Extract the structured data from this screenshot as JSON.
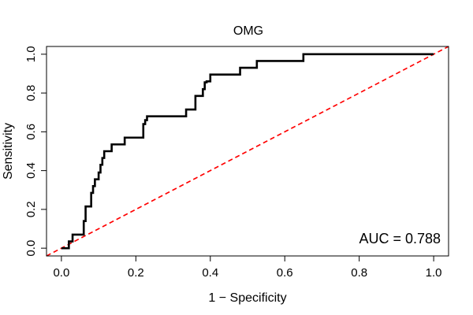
{
  "chart_data": {
    "type": "line",
    "title": "OMG",
    "xlabel": "1 − Specificity",
    "ylabel": "Sensitivity",
    "xlim": [
      -0.04,
      1.04
    ],
    "ylim": [
      -0.04,
      1.04
    ],
    "x_ticks": [
      0.0,
      0.2,
      0.4,
      0.6,
      0.8,
      1.0
    ],
    "x_tick_labels": [
      "0.0",
      "0.2",
      "0.4",
      "0.6",
      "0.8",
      "1.0"
    ],
    "y_ticks": [
      0.0,
      0.2,
      0.4,
      0.6,
      0.8,
      1.0
    ],
    "y_tick_labels": [
      "0.0",
      "0.2",
      "0.4",
      "0.6",
      "0.8",
      "1.0"
    ],
    "grid": false,
    "annotation": "AUC = 0.788",
    "series": [
      {
        "style": "solid",
        "color": "#000000",
        "x": [
          0.0,
          0.02,
          0.02,
          0.03,
          0.03,
          0.06,
          0.06,
          0.065,
          0.065,
          0.08,
          0.08,
          0.085,
          0.085,
          0.09,
          0.09,
          0.1,
          0.1,
          0.105,
          0.105,
          0.11,
          0.11,
          0.115,
          0.115,
          0.135,
          0.135,
          0.17,
          0.17,
          0.22,
          0.22,
          0.225,
          0.225,
          0.23,
          0.23,
          0.335,
          0.335,
          0.36,
          0.36,
          0.38,
          0.38,
          0.385,
          0.385,
          0.39,
          0.39,
          0.4,
          0.4,
          0.48,
          0.48,
          0.525,
          0.525,
          0.65,
          0.65,
          1.0
        ],
        "y": [
          0.0,
          0.0,
          0.035,
          0.035,
          0.07,
          0.07,
          0.14,
          0.14,
          0.215,
          0.215,
          0.285,
          0.285,
          0.32,
          0.32,
          0.355,
          0.355,
          0.39,
          0.39,
          0.43,
          0.43,
          0.465,
          0.465,
          0.5,
          0.5,
          0.535,
          0.535,
          0.57,
          0.57,
          0.64,
          0.64,
          0.66,
          0.66,
          0.68,
          0.68,
          0.715,
          0.715,
          0.785,
          0.785,
          0.82,
          0.82,
          0.855,
          0.855,
          0.86,
          0.86,
          0.895,
          0.895,
          0.93,
          0.93,
          0.965,
          0.965,
          1.0,
          1.0
        ]
      },
      {
        "style": "dashed",
        "color": "#ff0000",
        "x": [
          -0.04,
          1.04
        ],
        "y": [
          -0.04,
          1.04
        ]
      }
    ]
  }
}
